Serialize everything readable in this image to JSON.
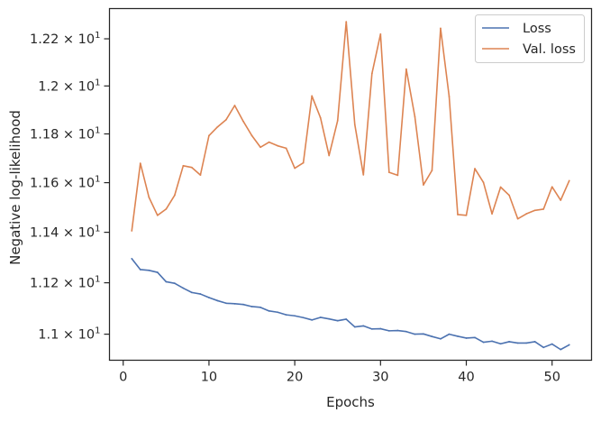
{
  "chart_data": {
    "type": "line",
    "xlabel": "Epochs",
    "ylabel": "Negative log-likelihood",
    "yscale": "log",
    "xlim": [
      -1.6,
      54.6
    ],
    "ylim": [
      10.9,
      12.33
    ],
    "x_ticks": [
      {
        "value": 0,
        "label": "0"
      },
      {
        "value": 10,
        "label": "10"
      },
      {
        "value": 20,
        "label": "20"
      },
      {
        "value": 30,
        "label": "30"
      },
      {
        "value": 40,
        "label": "40"
      },
      {
        "value": 50,
        "label": "50"
      }
    ],
    "y_ticks": [
      {
        "value": 11.0,
        "base": "1.1",
        "sep": " × ",
        "exp_base": "10",
        "exp": "1"
      },
      {
        "value": 11.2,
        "base": "1.12",
        "sep": " × ",
        "exp_base": "10",
        "exp": "1"
      },
      {
        "value": 11.4,
        "base": "1.14",
        "sep": " × ",
        "exp_base": "10",
        "exp": "1"
      },
      {
        "value": 11.6,
        "base": "1.16",
        "sep": " × ",
        "exp_base": "10",
        "exp": "1"
      },
      {
        "value": 11.8,
        "base": "1.18",
        "sep": " × ",
        "exp_base": "10",
        "exp": "1"
      },
      {
        "value": 12.0,
        "base": "1.2",
        "sep": " × ",
        "exp_base": "10",
        "exp": "1"
      },
      {
        "value": 12.2,
        "base": "1.22",
        "sep": " × ",
        "exp_base": "10",
        "exp": "1"
      }
    ],
    "grid": false,
    "legend_position": "top-right",
    "x": [
      1,
      2,
      3,
      4,
      5,
      6,
      7,
      8,
      9,
      10,
      11,
      12,
      13,
      14,
      15,
      16,
      17,
      18,
      19,
      20,
      21,
      22,
      23,
      24,
      25,
      26,
      27,
      28,
      29,
      30,
      31,
      32,
      33,
      34,
      35,
      36,
      37,
      38,
      39,
      40,
      41,
      42,
      43,
      44,
      45,
      46,
      47,
      48,
      49,
      50,
      51,
      52
    ],
    "series": [
      {
        "name": "Loss",
        "color": "#4c72b0",
        "values": [
          11.295,
          11.252,
          11.249,
          11.241,
          11.204,
          11.198,
          11.179,
          11.162,
          11.156,
          11.142,
          11.13,
          11.12,
          11.118,
          11.115,
          11.107,
          11.104,
          11.09,
          11.085,
          11.075,
          11.071,
          11.064,
          11.055,
          11.065,
          11.059,
          11.052,
          11.058,
          11.028,
          11.032,
          11.02,
          11.021,
          11.013,
          11.014,
          11.01,
          11.0,
          11.001,
          10.991,
          10.982,
          11.0,
          10.992,
          10.985,
          10.987,
          10.969,
          10.973,
          10.963,
          10.971,
          10.966,
          10.966,
          10.971,
          10.949,
          10.962,
          10.941,
          10.959
        ]
      },
      {
        "name": "Val. loss",
        "color": "#dd8452",
        "values": [
          11.406,
          11.679,
          11.541,
          11.468,
          11.493,
          11.549,
          11.669,
          11.662,
          11.631,
          11.793,
          11.829,
          11.859,
          11.918,
          11.852,
          11.793,
          11.745,
          11.766,
          11.751,
          11.741,
          11.659,
          11.681,
          11.958,
          11.867,
          11.711,
          11.855,
          12.273,
          11.839,
          11.632,
          12.052,
          12.22,
          11.642,
          11.63,
          12.071,
          11.872,
          11.591,
          11.65,
          12.245,
          11.956,
          11.471,
          11.468,
          11.657,
          11.601,
          11.474,
          11.582,
          11.549,
          11.454,
          11.474,
          11.488,
          11.493,
          11.583,
          11.529,
          11.608
        ]
      }
    ]
  }
}
